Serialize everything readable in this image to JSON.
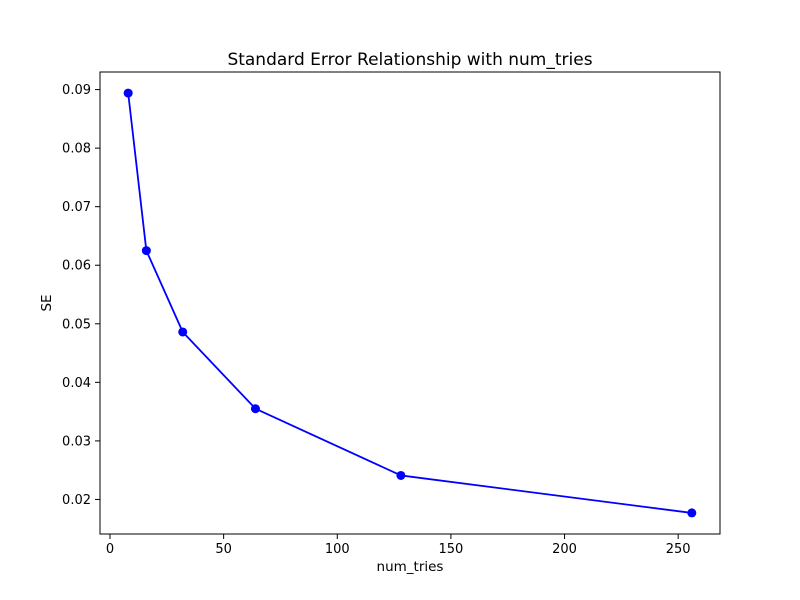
{
  "chart_data": {
    "type": "line",
    "title": "Standard Error Relationship with num_tries",
    "xlabel": "num_tries",
    "ylabel": "SE",
    "series": [
      {
        "name": "SE",
        "x": [
          8,
          16,
          32,
          64,
          128,
          256
        ],
        "y": [
          0.0894,
          0.0625,
          0.0486,
          0.0355,
          0.0241,
          0.0177
        ],
        "color": "#0000ff",
        "marker": "circle"
      }
    ],
    "xticks": [
      0,
      50,
      100,
      150,
      200,
      250
    ],
    "yticks": [
      0.02,
      0.03,
      0.04,
      0.05,
      0.06,
      0.07,
      0.08,
      0.09
    ],
    "ytick_decimals": 2,
    "xlim": [
      -4.4,
      268.4
    ],
    "ylim": [
      0.0141,
      0.093
    ],
    "grid": false,
    "legend": null,
    "colors": {
      "background": "#ffffff",
      "spine": "#000000",
      "text": "#000000",
      "line": "#0000ff"
    }
  }
}
